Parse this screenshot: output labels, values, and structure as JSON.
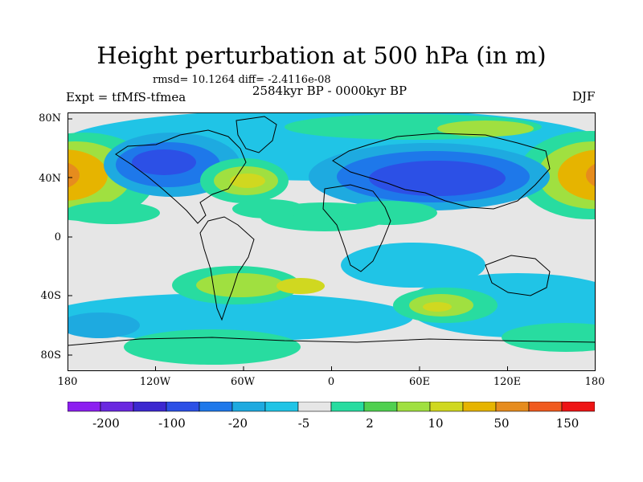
{
  "title": "Height perturbation at 500 hPa (in m)",
  "stats": "rmsd= 10.1264 diff= -2.4116e-08",
  "period": "2584kyr BP - 0000kyr BP",
  "experiment": "Expt = tfMfS-tfmea",
  "season": "DJF",
  "lat_labels": [
    "80N",
    "40N",
    "0",
    "40S",
    "80S"
  ],
  "lon_labels": [
    "180",
    "120W",
    "60W",
    "0",
    "60E",
    "120E",
    "180"
  ],
  "colorbar": {
    "colors": [
      "#8c1ff0",
      "#6a28e0",
      "#3c28d0",
      "#2c50e6",
      "#1e78ea",
      "#1eaae0",
      "#20c4e6",
      "#e6e6e6",
      "#28dca0",
      "#50d050",
      "#a0e040",
      "#d0d820",
      "#e6b400",
      "#e68c1e",
      "#f05a1e",
      "#ee1414"
    ],
    "tick_labels": [
      "-200",
      "-100",
      "-20",
      "-5",
      "2",
      "10",
      "50",
      "150"
    ]
  }
}
